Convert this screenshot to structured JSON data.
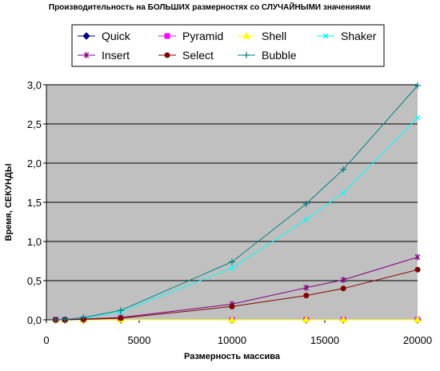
{
  "chart_data": {
    "type": "line",
    "title": "Производительность на БОЛЬШИХ размерностях со СЛУЧАЙНЫМИ значениями",
    "xlabel": "Размерность массива",
    "ylabel": "Время, СЕКУНДЫ",
    "xlim": [
      0,
      20000
    ],
    "ylim": [
      0,
      3.0
    ],
    "x_ticks": [
      0,
      5000,
      10000,
      15000,
      20000
    ],
    "x_tick_labels": [
      "0",
      "5000",
      "10000",
      "15000",
      "20000"
    ],
    "y_ticks": [
      0,
      0.5,
      1.0,
      1.5,
      2.0,
      2.5,
      3.0
    ],
    "y_tick_labels": [
      "0,0",
      "0,5",
      "1,0",
      "1,5",
      "2,0",
      "2,5",
      "3,0"
    ],
    "grid": "horizontal",
    "plot_background": "#C0C0C0",
    "legend_position": "top",
    "x": [
      500,
      1000,
      2000,
      4000,
      10000,
      14000,
      16000,
      20000
    ],
    "series": [
      {
        "name": "Quick",
        "color": "#000080",
        "marker": "diamond",
        "values": [
          0,
          0,
          0,
          0,
          0,
          0,
          0,
          0
        ]
      },
      {
        "name": "Pyramid",
        "color": "#FF00FF",
        "marker": "square",
        "values": [
          0,
          0,
          0,
          0,
          0,
          0,
          0,
          0
        ]
      },
      {
        "name": "Shell",
        "color": "#FFFF00",
        "marker": "triangle",
        "values": [
          0,
          0,
          0,
          0,
          0,
          0,
          0,
          0
        ]
      },
      {
        "name": "Shaker",
        "color": "#00FFFF",
        "marker": "x",
        "values": [
          0,
          0.005,
          0.02,
          0.1,
          0.66,
          1.28,
          1.62,
          2.58
        ]
      },
      {
        "name": "Insert",
        "color": "#800080",
        "marker": "star",
        "values": [
          0,
          0,
          0.01,
          0.03,
          0.2,
          0.41,
          0.51,
          0.8
        ]
      },
      {
        "name": "Select",
        "color": "#800000",
        "marker": "circle",
        "values": [
          0,
          0,
          0.005,
          0.02,
          0.17,
          0.31,
          0.4,
          0.64
        ]
      },
      {
        "name": "Bubble",
        "color": "#008080",
        "marker": "plus",
        "values": [
          0,
          0.005,
          0.03,
          0.12,
          0.74,
          1.48,
          1.92,
          2.99
        ]
      }
    ]
  }
}
